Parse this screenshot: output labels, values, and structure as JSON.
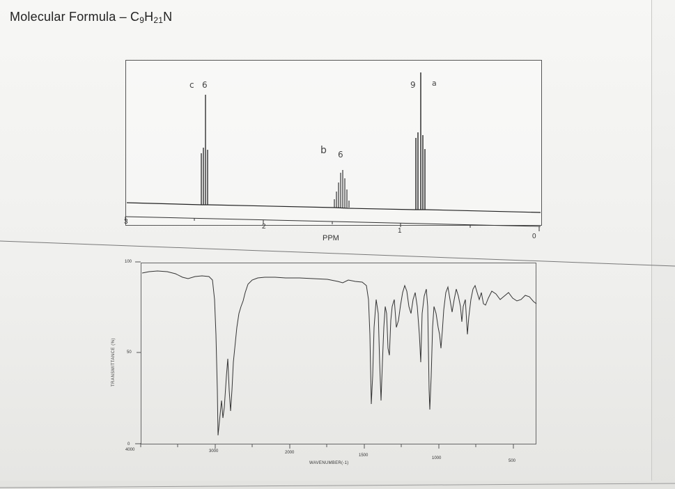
{
  "title": {
    "prefix": "Molecular Formula – C",
    "c_sub": "9",
    "h": "H",
    "h_sub": "21",
    "n": "N"
  },
  "nmr": {
    "xlabel": "PPM",
    "ticks": [
      "3",
      "2",
      "1",
      "0"
    ],
    "annotations": [
      {
        "letter": "c",
        "integration": "6"
      },
      {
        "letter": "b",
        "integration": "6"
      },
      {
        "letter": "a",
        "integration": "9"
      }
    ]
  },
  "ir": {
    "ylabel": "TRANSMITTANCE (%)",
    "yticks": [
      "100",
      "50",
      "0"
    ],
    "xticks": [
      "4000",
      "3000",
      "2000",
      "1500",
      "1000",
      "500"
    ],
    "xlabel": "WAVENUMBER(-1)"
  }
}
